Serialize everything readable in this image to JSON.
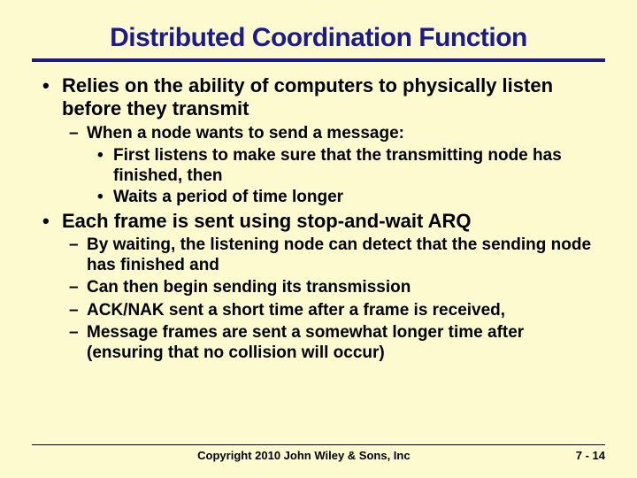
{
  "colors": {
    "slide_bg": "#fdfad0",
    "title_color": "#1d1a8d",
    "rule_color": "#1d1a8d",
    "body_color": "#000000",
    "footer_color": "#000000"
  },
  "sizes": {
    "title_fontsize": 30,
    "l1_fontsize": 22,
    "l2_fontsize": 19,
    "l3_fontsize": 19,
    "footer_fontsize": 13,
    "title_rule_width": 4,
    "footer_rule_width": 1,
    "l1_lineheight": 1.18,
    "l2_lineheight": 1.18,
    "l3_lineheight": 1.18
  },
  "title": "Distributed Coordination Function",
  "bullets": {
    "a": "Relies on the ability of computers to physically listen before they transmit",
    "a1": "When a node wants to send a message:",
    "a1i": "First listens to make sure that the transmitting node has finished, then",
    "a1ii": "Waits a period of time longer",
    "b": "Each frame is sent using stop-and-wait ARQ",
    "b1": "By waiting, the listening node can detect that the sending node has finished and",
    "b2": "Can then begin sending its transmission",
    "b3": "ACK/NAK sent a short time after a frame is received,",
    "b4": "Message frames are sent a somewhat longer time after (ensuring that no collision will occur)"
  },
  "footer": {
    "copyright": "Copyright 2010 John Wiley & Sons, Inc",
    "page": "7 - 14"
  }
}
